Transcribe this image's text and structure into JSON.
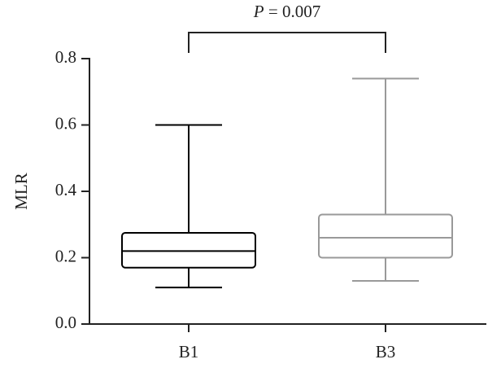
{
  "chart_data": {
    "type": "box",
    "y_label": "MLR",
    "categories": [
      "B1",
      "B3"
    ],
    "boxes": [
      {
        "color": "#000000",
        "min": 0.11,
        "q1": 0.17,
        "median": 0.22,
        "q3": 0.275,
        "max": 0.6
      },
      {
        "color": "#999999",
        "min": 0.13,
        "q1": 0.2,
        "median": 0.26,
        "q3": 0.33,
        "max": 0.74
      }
    ],
    "annotation": {
      "italic": "P",
      "text": "= 0.007"
    },
    "ylim": [
      0,
      0.8
    ],
    "yticks": [
      {
        "value": 0,
        "label": "0.0"
      },
      0.2,
      0.4,
      0.6,
      0.8
    ]
  }
}
